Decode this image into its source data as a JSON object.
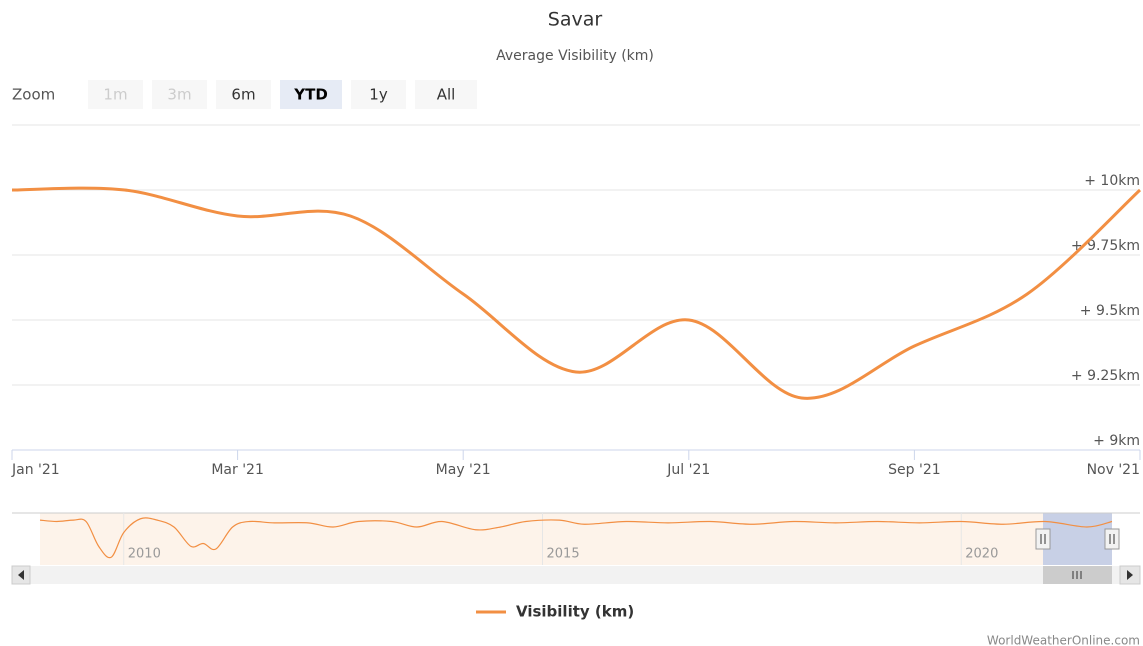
{
  "chart_data": {
    "type": "line",
    "title": "Savar",
    "subtitle": "Average Visibility (km)",
    "zoom": {
      "label": "Zoom",
      "buttons": [
        "1m",
        "3m",
        "6m",
        "YTD",
        "1y",
        "All"
      ],
      "selected": "YTD",
      "disabled": [
        "1m",
        "3m"
      ]
    },
    "categories": [
      "Jan '21",
      null,
      "Mar '21",
      null,
      "May '21",
      null,
      "Jul '21",
      null,
      "Sep '21",
      null,
      "Nov '21"
    ],
    "series": [
      {
        "name": "Visibility (km)",
        "color": "#f28f43",
        "values": [
          10,
          10,
          9.9,
          9.9,
          9.6,
          9.3,
          9.5,
          9.2,
          9.4,
          9.6,
          10
        ]
      }
    ],
    "ylim": [
      9,
      10.25
    ],
    "yticks": [
      {
        "value": 9,
        "label": "+ 9km"
      },
      {
        "value": 9.25,
        "label": "+ 9.25km"
      },
      {
        "value": 9.5,
        "label": "+ 9.5km"
      },
      {
        "value": 9.75,
        "label": "+ 9.75km"
      },
      {
        "value": 10,
        "label": "+ 10km"
      }
    ],
    "grid": true,
    "navigator": {
      "x": [
        2009.0,
        2009.2,
        2009.4,
        2009.55,
        2009.7,
        2009.85,
        2010.0,
        2010.2,
        2010.4,
        2010.6,
        2010.8,
        2010.95,
        2011.1,
        2011.3,
        2011.5,
        2011.8,
        2012.2,
        2012.5,
        2012.8,
        2013.2,
        2013.5,
        2013.8,
        2014.2,
        2014.5,
        2014.8,
        2015.2,
        2015.5,
        2016,
        2016.5,
        2017,
        2017.5,
        2018,
        2018.5,
        2019,
        2019.5,
        2020,
        2020.5,
        2021,
        2021.5,
        2021.8
      ],
      "values": [
        9.95,
        9.9,
        9.95,
        9.9,
        9.0,
        8.6,
        9.5,
        10.0,
        9.95,
        9.7,
        9.0,
        9.1,
        8.9,
        9.7,
        9.9,
        9.85,
        9.85,
        9.7,
        9.9,
        9.9,
        9.7,
        9.9,
        9.6,
        9.7,
        9.9,
        9.95,
        9.8,
        9.9,
        9.85,
        9.9,
        9.8,
        9.9,
        9.85,
        9.9,
        9.85,
        9.9,
        9.8,
        9.9,
        9.7,
        9.9
      ],
      "xlim": [
        2009,
        2021.8
      ],
      "ylim": [
        8.5,
        10.1
      ],
      "xticks": [
        2010,
        2015,
        2020
      ]
    },
    "credits": "WorldWeatherOnline.com"
  }
}
